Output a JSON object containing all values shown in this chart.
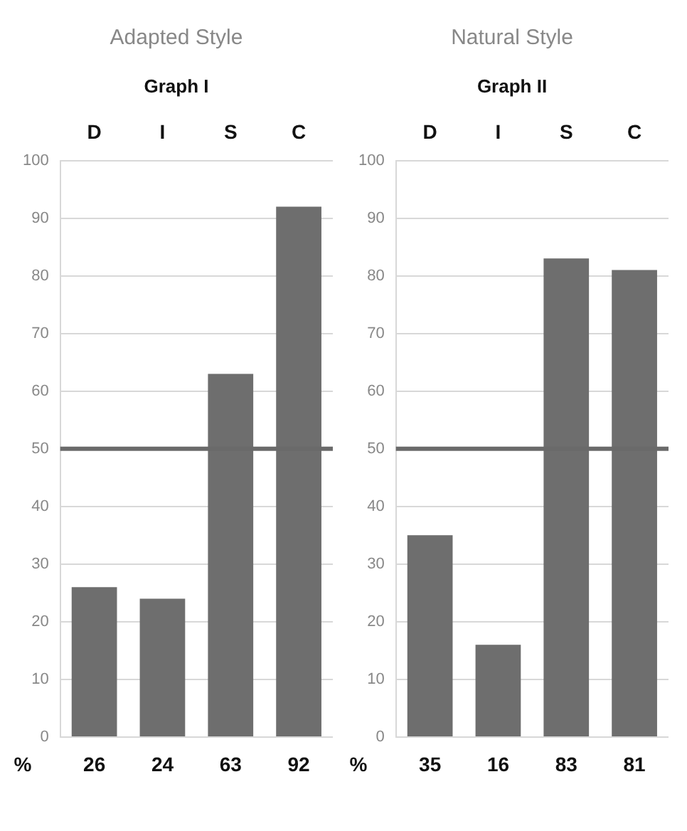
{
  "chart_data": [
    {
      "type": "bar",
      "title": "Adapted Style",
      "subtitle": "Graph I",
      "categories": [
        "D",
        "I",
        "S",
        "C"
      ],
      "values": [
        26,
        24,
        63,
        92
      ],
      "color": "#6e6e6e",
      "ylim": [
        0,
        100
      ],
      "yticks": [
        0,
        10,
        20,
        30,
        40,
        50,
        60,
        70,
        80,
        90,
        100
      ],
      "grid": "y",
      "ref_lines": [
        {
          "axis": "y",
          "value": 50,
          "color": "#6a6a6a"
        }
      ],
      "data_labels": true,
      "annotations": [
        "%"
      ]
    },
    {
      "type": "bar",
      "title": "Natural Style",
      "subtitle": "Graph II",
      "categories": [
        "D",
        "I",
        "S",
        "C"
      ],
      "values": [
        35,
        16,
        83,
        81
      ],
      "color": "#6e6e6e",
      "ylim": [
        0,
        100
      ],
      "yticks": [
        0,
        10,
        20,
        30,
        40,
        50,
        60,
        70,
        80,
        90,
        100
      ],
      "grid": "y",
      "ref_lines": [
        {
          "axis": "y",
          "value": 50,
          "color": "#6a6a6a"
        }
      ],
      "data_labels": true,
      "annotations": [
        "%"
      ]
    }
  ]
}
